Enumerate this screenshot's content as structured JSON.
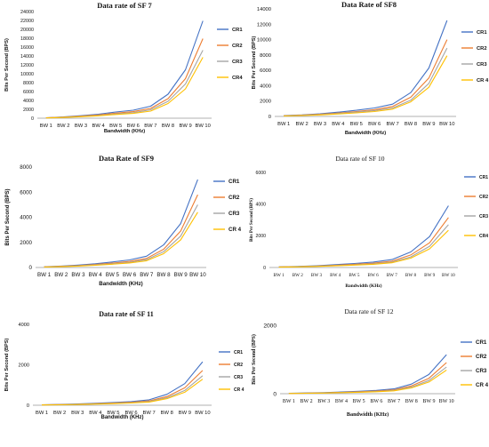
{
  "colors": {
    "series": [
      "#4472C4",
      "#ED7D31",
      "#A5A5A5",
      "#FFC000"
    ],
    "axis": "#000000",
    "grid": "#D9D9D9"
  },
  "chart_data": [
    {
      "type": "line",
      "title": "Data rate of SF 7",
      "xlabel": "Bandwidth (KHz)",
      "ylabel": "Bits Per Second (BPS)",
      "categories": [
        "BW 1",
        "BW 2",
        "BW 3",
        "BW 4",
        "BW 5",
        "BW 6",
        "BW 7",
        "BW 8",
        "BW 9",
        "BW 10"
      ],
      "ylim": [
        0,
        24000
      ],
      "yticks": [
        "0",
        "2000",
        "4000",
        "6000",
        "8000",
        "10000",
        "12000",
        "14000",
        "16000",
        "18000",
        "20000",
        "22000",
        "24000"
      ],
      "legend_position": "right",
      "series": [
        {
          "name": "CR1",
          "values": [
            100,
            280,
            560,
            900,
            1400,
            1800,
            2700,
            5400,
            10900,
            21900
          ]
        },
        {
          "name": "CR2",
          "values": [
            80,
            230,
            460,
            740,
            1150,
            1480,
            2200,
            4400,
            8900,
            17900
          ]
        },
        {
          "name": "CR3",
          "values": [
            70,
            200,
            390,
            620,
            960,
            1250,
            1900,
            3800,
            7700,
            15300
          ]
        },
        {
          "name": "CR4",
          "values": [
            60,
            170,
            340,
            540,
            840,
            1080,
            1600,
            3300,
            6600,
            13700
          ]
        }
      ]
    },
    {
      "type": "line",
      "title": "Data Rate of SF8",
      "xlabel": "Bandwidth (KHz)",
      "ylabel": "Bits Per Second (BPS)",
      "categories": [
        "BW 1",
        "BW 2",
        "BW 3",
        "BW 4",
        "BW 5",
        "BW 6",
        "BW 7",
        "BW 8",
        "BW 9",
        "BW 10"
      ],
      "ylim": [
        0,
        14000
      ],
      "yticks": [
        "0",
        "2000",
        "4000",
        "6000",
        "8000",
        "10000",
        "12000",
        "14000"
      ],
      "legend_position": "right",
      "series": [
        {
          "name": "CR1",
          "values": [
            100,
            200,
            350,
            550,
            800,
            1100,
            1600,
            3100,
            6300,
            12500
          ]
        },
        {
          "name": "CR2",
          "values": [
            80,
            160,
            280,
            440,
            640,
            880,
            1300,
            2500,
            5000,
            10000
          ]
        },
        {
          "name": "CR3",
          "values": [
            70,
            140,
            240,
            380,
            550,
            760,
            1100,
            2100,
            4300,
            8900
          ]
        },
        {
          "name": "CR 4",
          "values": [
            60,
            120,
            200,
            320,
            460,
            640,
            950,
            1900,
            3800,
            7900
          ]
        }
      ]
    },
    {
      "type": "line",
      "title": "Data Rate of SF9",
      "xlabel": "Bandwidth (KHz)",
      "ylabel": "Bits Per Second (BPS)",
      "categories": [
        "BW 1",
        "BW 2",
        "BW 3",
        "BW 4",
        "BW 5",
        "BW 6",
        "BW 7",
        "BW 8",
        "BW 9",
        "BW 10"
      ],
      "ylim": [
        0,
        8000
      ],
      "yticks": [
        "0",
        "2000",
        "4000",
        "6000",
        "8000"
      ],
      "legend_position": "right",
      "series": [
        {
          "name": "CR1",
          "values": [
            60,
            110,
            190,
            300,
            440,
            600,
            900,
            1800,
            3500,
            7000
          ]
        },
        {
          "name": "CR2",
          "values": [
            50,
            90,
            150,
            240,
            350,
            480,
            720,
            1450,
            2900,
            5800
          ]
        },
        {
          "name": "CR3",
          "values": [
            40,
            75,
            130,
            210,
            300,
            410,
            620,
            1250,
            2500,
            5000
          ]
        },
        {
          "name": "CR 4",
          "values": [
            35,
            65,
            115,
            180,
            260,
            360,
            540,
            1100,
            2200,
            4400
          ]
        }
      ]
    },
    {
      "type": "line",
      "title": "Data rate of SF 10",
      "xlabel": "Bandwidth (KHz)",
      "ylabel": "Bits Per Second (BPS)",
      "categories": [
        "BW 1",
        "BW 2",
        "BW 3",
        "BW 4",
        "BW 5",
        "BW 6",
        "BW 7",
        "BW 8",
        "BW 9",
        "BW 10"
      ],
      "ylim": [
        0,
        6000
      ],
      "yticks": [
        "0",
        "2000",
        "4000",
        "6000"
      ],
      "legend_position": "right",
      "series": [
        {
          "name": "CR1",
          "values": [
            40,
            70,
            110,
            180,
            250,
            340,
            500,
            980,
            1950,
            3900
          ]
        },
        {
          "name": "CR2",
          "values": [
            32,
            56,
            88,
            140,
            200,
            270,
            400,
            790,
            1560,
            3150
          ]
        },
        {
          "name": "CR3",
          "values": [
            28,
            48,
            76,
            120,
            170,
            230,
            340,
            670,
            1340,
            2700
          ]
        },
        {
          "name": "CR4",
          "values": [
            24,
            42,
            66,
            105,
            150,
            200,
            300,
            590,
            1180,
            2350
          ]
        }
      ]
    },
    {
      "type": "line",
      "title": "Data rate of SF 11",
      "xlabel": "Bandwidth  (KHz)",
      "ylabel": "Bits Per Second (BPS)",
      "categories": [
        "BW 1",
        "BW 2",
        "BW 3",
        "BW 4",
        "BW 5",
        "BW 6",
        "BW 7",
        "BW 8",
        "BW 9",
        "BW 10"
      ],
      "ylim": [
        0,
        4000
      ],
      "yticks": [
        "0",
        "2000",
        "4000"
      ],
      "legend_position": "right",
      "series": [
        {
          "name": "CR1",
          "values": [
            20,
            40,
            60,
            95,
            135,
            180,
            270,
            540,
            1070,
            2150
          ]
        },
        {
          "name": "CR2",
          "values": [
            16,
            32,
            48,
            76,
            108,
            145,
            215,
            430,
            860,
            1720
          ]
        },
        {
          "name": "CR3",
          "values": [
            14,
            27,
            41,
            65,
            92,
            123,
            185,
            370,
            730,
            1460
          ]
        },
        {
          "name": "CR 4",
          "values": [
            12,
            24,
            36,
            57,
            81,
            108,
            160,
            325,
            640,
            1290
          ]
        }
      ]
    },
    {
      "type": "line",
      "title": "Data rate of SF 12",
      "xlabel": "Bandwidth (KHz)",
      "ylabel": "Bits Per Second (BPS)",
      "categories": [
        "BW 1",
        "BW 2",
        "BW 3",
        "BW 4",
        "BW 5",
        "BW 6",
        "BW 7",
        "BW 8",
        "BW 9",
        "BW 10"
      ],
      "ylim": [
        0,
        2000
      ],
      "yticks": [
        "0",
        "2000"
      ],
      "legend_position": "right",
      "series": [
        {
          "name": "CR1",
          "values": [
            10,
            20,
            32,
            50,
            70,
            95,
            140,
            280,
            560,
            1140
          ]
        },
        {
          "name": "CR2",
          "values": [
            8,
            16,
            26,
            40,
            56,
            76,
            112,
            225,
            450,
            910
          ]
        },
        {
          "name": "CR3",
          "values": [
            7,
            14,
            22,
            34,
            48,
            65,
            96,
            192,
            385,
            780
          ]
        },
        {
          "name": "CR 4",
          "values": [
            6,
            12,
            19,
            30,
            42,
            57,
            84,
            170,
            340,
            690
          ]
        }
      ]
    }
  ]
}
